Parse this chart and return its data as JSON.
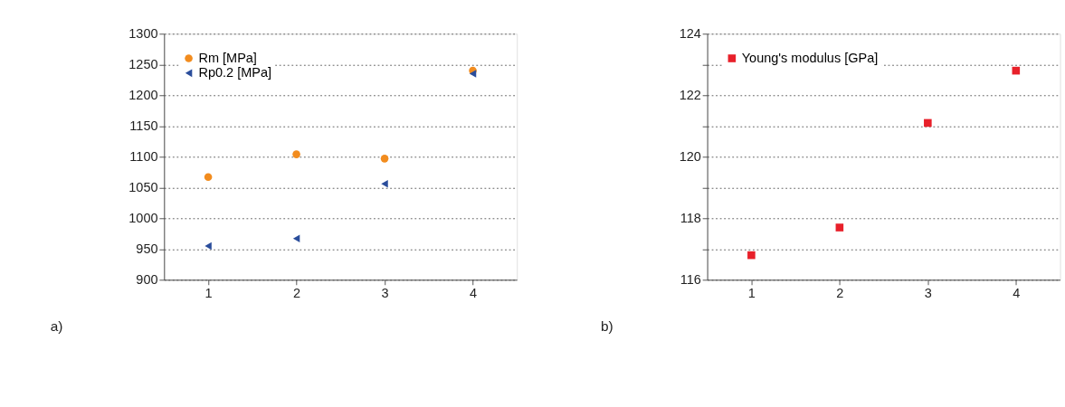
{
  "chart_data": [
    {
      "type": "scatter",
      "x": [
        1,
        2,
        3,
        4
      ],
      "xlim": [
        0.5,
        4.5
      ],
      "xticks": [
        1,
        2,
        3,
        4
      ],
      "ylim": [
        900,
        1300
      ],
      "yticks": [
        900,
        950,
        1000,
        1050,
        1100,
        1150,
        1200,
        1250,
        1300
      ],
      "grid": "y",
      "legend": "top left",
      "annotations": [
        "a)"
      ],
      "series": [
        {
          "name": "Rm [MPa]",
          "color": "#f28c1e",
          "marker": "circle",
          "values": [
            1067,
            1104,
            1097,
            1240
          ]
        },
        {
          "name": "Rp0.2 [MPa]",
          "color": "#2a4d9b",
          "marker": "triangle",
          "values": [
            955,
            967,
            1056,
            1235
          ]
        }
      ]
    },
    {
      "type": "scatter",
      "x": [
        1,
        2,
        3,
        4
      ],
      "xlim": [
        0.5,
        4.5
      ],
      "xticks": [
        1,
        2,
        3,
        4
      ],
      "ylim": [
        116,
        124
      ],
      "yticks": [
        116,
        {
          "value": 117,
          "label": null
        },
        118,
        {
          "value": 119,
          "label": null
        },
        120,
        {
          "value": 121,
          "label": null
        },
        122,
        {
          "value": 123,
          "label": null
        },
        124
      ],
      "grid": "y",
      "legend": "top left",
      "annotations": [
        "b)"
      ],
      "series": [
        {
          "name": "Young's modulus [GPa]",
          "color": "#e8202a",
          "marker": "square",
          "values": [
            116.8,
            117.7,
            121.1,
            122.8
          ]
        }
      ]
    }
  ]
}
